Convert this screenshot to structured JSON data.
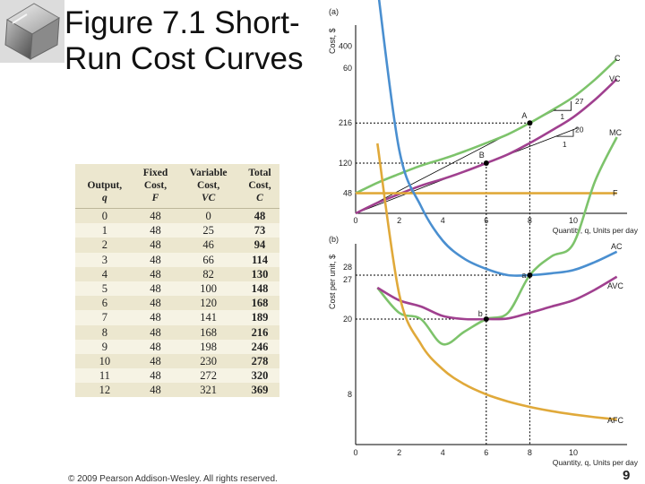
{
  "slide": {
    "title": "Figure 7.1 Short-\nRun Cost Curves",
    "copyright": "© 2009 Pearson Addison-Wesley. All rights reserved.",
    "page_number": "9"
  },
  "table": {
    "headers": [
      [
        "Output,",
        "q"
      ],
      [
        "Fixed",
        "Cost,",
        "F"
      ],
      [
        "Variable",
        "Cost,",
        "VC"
      ],
      [
        "Total",
        "Cost,",
        "C"
      ]
    ],
    "rows": [
      [
        "0",
        "48",
        "0",
        "48"
      ],
      [
        "1",
        "48",
        "25",
        "73"
      ],
      [
        "2",
        "48",
        "46",
        "94"
      ],
      [
        "3",
        "48",
        "66",
        "114"
      ],
      [
        "4",
        "48",
        "82",
        "130"
      ],
      [
        "5",
        "48",
        "100",
        "148"
      ],
      [
        "6",
        "48",
        "120",
        "168"
      ],
      [
        "7",
        "48",
        "141",
        "189"
      ],
      [
        "8",
        "48",
        "168",
        "216"
      ],
      [
        "9",
        "48",
        "198",
        "246"
      ],
      [
        "10",
        "48",
        "230",
        "278"
      ],
      [
        "11",
        "48",
        "272",
        "320"
      ],
      [
        "12",
        "48",
        "321",
        "369"
      ]
    ]
  },
  "chart_data": [
    {
      "type": "line",
      "panel_label": "(a)",
      "ylabel": "Cost, $",
      "xlabel": "Quantity, q, Units per day",
      "x_ticks": [
        "0",
        "2",
        "4",
        "6",
        "8",
        "10"
      ],
      "y_tick_labels": [
        "400",
        "216",
        "120",
        "48"
      ],
      "ylim": [
        0,
        400
      ],
      "xlim": [
        0,
        12
      ],
      "series": [
        {
          "name": "C",
          "color": "#7dc36b",
          "x": [
            0,
            1,
            2,
            3,
            4,
            5,
            6,
            7,
            8,
            9,
            10,
            11,
            12
          ],
          "y": [
            48,
            73,
            94,
            114,
            130,
            148,
            168,
            189,
            216,
            246,
            278,
            320,
            369
          ]
        },
        {
          "name": "VC",
          "color": "#a0408f",
          "x": [
            0,
            1,
            2,
            3,
            4,
            5,
            6,
            7,
            8,
            9,
            10,
            11,
            12
          ],
          "y": [
            0,
            25,
            46,
            66,
            82,
            100,
            120,
            141,
            168,
            198,
            230,
            272,
            321
          ]
        },
        {
          "name": "F",
          "color": "#e0a93a",
          "x": [
            0,
            12
          ],
          "y": [
            48,
            48
          ]
        }
      ],
      "points": [
        {
          "label": "A",
          "x": 8,
          "y": 216
        },
        {
          "label": "B",
          "x": 6,
          "y": 120
        }
      ],
      "tangent_annotations": [
        {
          "rise": "27",
          "run": "1"
        },
        {
          "rise": "20",
          "run": "1"
        }
      ]
    },
    {
      "type": "line",
      "panel_label": "(b)",
      "ylabel": "Cost per unit, $",
      "xlabel": "Quantity, q, Units per day",
      "x_ticks": [
        "0",
        "2",
        "4",
        "6",
        "8",
        "10"
      ],
      "y_tick_labels": [
        "60",
        "28",
        "27",
        "20",
        "8"
      ],
      "ylim": [
        0,
        60
      ],
      "xlim": [
        0,
        12
      ],
      "series": [
        {
          "name": "MC",
          "color": "#7dc36b",
          "x": [
            1,
            2,
            3,
            4,
            5,
            6,
            7,
            8,
            9,
            10,
            11,
            12
          ],
          "y": [
            25,
            21,
            20,
            16,
            18,
            20,
            21,
            27,
            30,
            32,
            42,
            49
          ]
        },
        {
          "name": "AC",
          "color": "#4a8fd0",
          "x": [
            1,
            2,
            3,
            4,
            5,
            6,
            7,
            8,
            9,
            10,
            11,
            12
          ],
          "y": [
            73,
            47,
            38,
            32.5,
            29.6,
            28,
            27,
            27,
            27.3,
            27.8,
            29.1,
            30.75
          ]
        },
        {
          "name": "AVC",
          "color": "#a0408f",
          "x": [
            1,
            2,
            3,
            4,
            5,
            6,
            7,
            8,
            9,
            10,
            11,
            12
          ],
          "y": [
            25,
            23,
            22,
            20.5,
            20,
            20,
            20.1,
            21,
            22,
            23,
            24.7,
            26.75
          ]
        },
        {
          "name": "AFC",
          "color": "#e0a93a",
          "x": [
            1,
            2,
            3,
            4,
            5,
            6,
            7,
            8,
            9,
            10,
            11,
            12
          ],
          "y": [
            48,
            24,
            16,
            12,
            9.6,
            8,
            6.86,
            6,
            5.33,
            4.8,
            4.36,
            4
          ]
        }
      ],
      "points": [
        {
          "label": "a",
          "x": 8,
          "y": 27
        },
        {
          "label": "b",
          "x": 6,
          "y": 20
        }
      ]
    }
  ]
}
